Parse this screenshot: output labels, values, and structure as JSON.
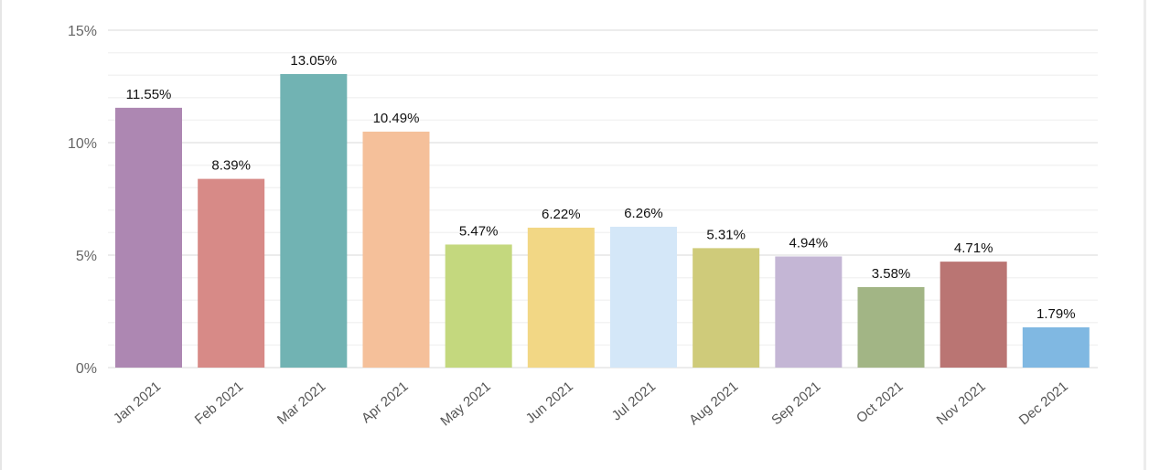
{
  "chart_data": {
    "type": "bar",
    "categories": [
      "Jan 2021",
      "Feb 2021",
      "Mar 2021",
      "Apr 2021",
      "May 2021",
      "Jun 2021",
      "Jul 2021",
      "Aug 2021",
      "Sep 2021",
      "Oct 2021",
      "Nov 2021",
      "Dec 2021"
    ],
    "values": [
      11.55,
      8.39,
      13.05,
      10.49,
      5.47,
      6.22,
      6.26,
      5.31,
      4.94,
      3.58,
      4.71,
      1.79
    ],
    "data_labels": [
      "11.55%",
      "8.39%",
      "13.05%",
      "10.49%",
      "5.47%",
      "6.22%",
      "6.26%",
      "5.31%",
      "4.94%",
      "3.58%",
      "4.71%",
      "1.79%"
    ],
    "colors": [
      "#ad87b2",
      "#d78a87",
      "#71b3b3",
      "#f5c09a",
      "#c4d87e",
      "#f2d785",
      "#d4e7f8",
      "#cfcb7a",
      "#c4b6d5",
      "#a2b585",
      "#ba7573",
      "#80b8e2"
    ],
    "yticks": [
      0,
      5,
      10,
      15
    ],
    "ytick_labels": [
      "0%",
      "5%",
      "10%",
      "15%"
    ],
    "ylim": [
      0,
      15
    ],
    "minor_grid_step": 1,
    "grid": true,
    "title": "",
    "xlabel": "",
    "ylabel": ""
  }
}
